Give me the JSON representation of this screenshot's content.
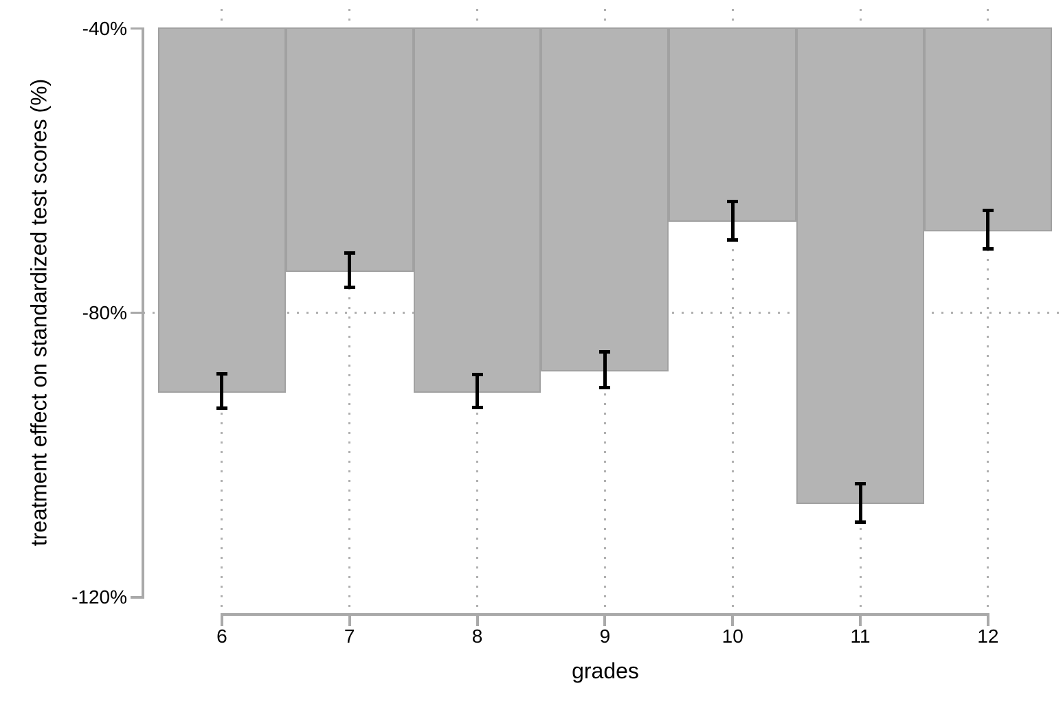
{
  "figure": {
    "background": "#ffffff"
  },
  "chart_data": {
    "type": "bar",
    "title": "",
    "xlabel": "grades",
    "ylabel": "treatment effect on standardized test scores (%)",
    "categories": [
      "6",
      "7",
      "8",
      "9",
      "10",
      "11",
      "12"
    ],
    "series": [
      {
        "name": "treatment effect",
        "values": [
          -91.0,
          -74.0,
          -91.0,
          -88.0,
          -67.0,
          -106.7,
          -68.3
        ],
        "ci_half_width": [
          2.4,
          2.4,
          2.3,
          2.5,
          2.7,
          2.7,
          2.7
        ]
      }
    ],
    "bar_origin": -40,
    "ylim": [
      -120,
      -40
    ],
    "yticks": {
      "values": [
        -40,
        -80,
        -120
      ],
      "labels": [
        "-40%",
        "-80%",
        "-120%"
      ]
    },
    "grid": {
      "vertical_at_categories": true,
      "horizontal_at": [
        -80
      ],
      "style": "dotted"
    },
    "legend": "none",
    "error_bars": true,
    "colors": {
      "bar_fill": "#b4b4b4",
      "bar_stroke": "#a1a1a1",
      "axis": "#a9a9a9",
      "grid": "#b0b0b0",
      "error_bar": "#000000",
      "text": "#000000"
    }
  }
}
